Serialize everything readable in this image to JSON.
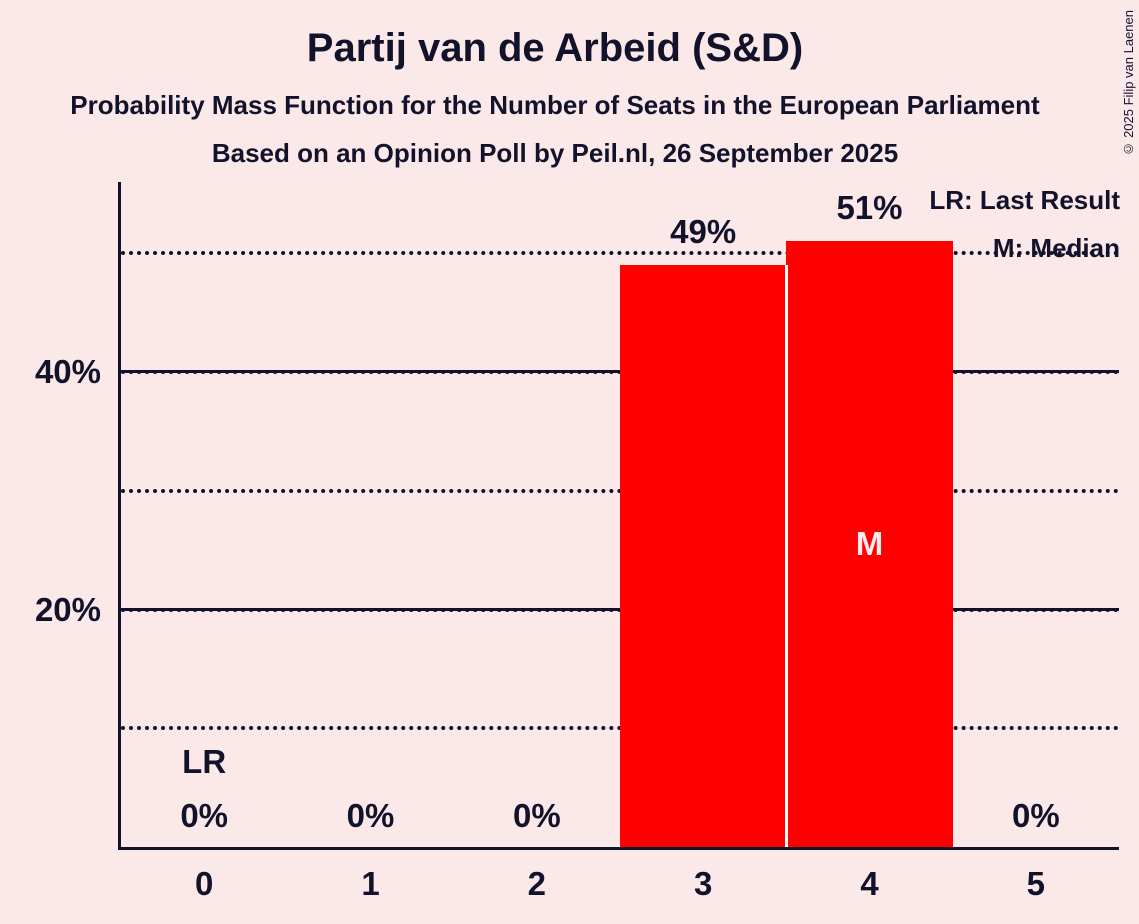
{
  "title": "Partij van de Arbeid (S&D)",
  "subtitle": "Probability Mass Function for the Number of Seats in the European Parliament",
  "source_line": "Based on an Opinion Poll by Peil.nl, 26 September 2025",
  "copyright": "© 2025 Filip van Laenen",
  "legend": {
    "last_result": "LR: Last Result",
    "median": "M: Median"
  },
  "colors": {
    "background": "#fbe9e9",
    "bar": "#ff0000",
    "text": "#12122b",
    "median_text": "#fcecec",
    "bar_divider": "#ffffff"
  },
  "chart_data": {
    "type": "bar",
    "title": "Partij van de Arbeid (S&D)",
    "subtitle": "Probability Mass Function for the Number of Seats in the European Parliament",
    "source": "Based on an Opinion Poll by Peil.nl, 26 September 2025",
    "xlabel": "",
    "ylabel": "",
    "categories": [
      "0",
      "1",
      "2",
      "3",
      "4",
      "5"
    ],
    "values": [
      0,
      0,
      0,
      49,
      51,
      0
    ],
    "bar_labels": [
      "0%",
      "0%",
      "0%",
      "49%",
      "51%",
      "0%"
    ],
    "ylim": [
      0,
      56
    ],
    "yticks": [
      {
        "value": 20,
        "label": "20%"
      },
      {
        "value": 40,
        "label": "40%"
      }
    ],
    "solid_gridlines": [
      20,
      40
    ],
    "dotted_gridlines": [
      10,
      30,
      50
    ],
    "grid": true,
    "legend_position": "top-right",
    "legend_entries": [
      "LR: Last Result",
      "M: Median"
    ],
    "annotations": [
      {
        "category": "0",
        "text": "LR",
        "meaning": "Last Result",
        "position": "above-zero-label"
      },
      {
        "category": "4",
        "text": "M",
        "meaning": "Median",
        "position": "inside-bar"
      }
    ],
    "bar_color": "#ff0000"
  }
}
